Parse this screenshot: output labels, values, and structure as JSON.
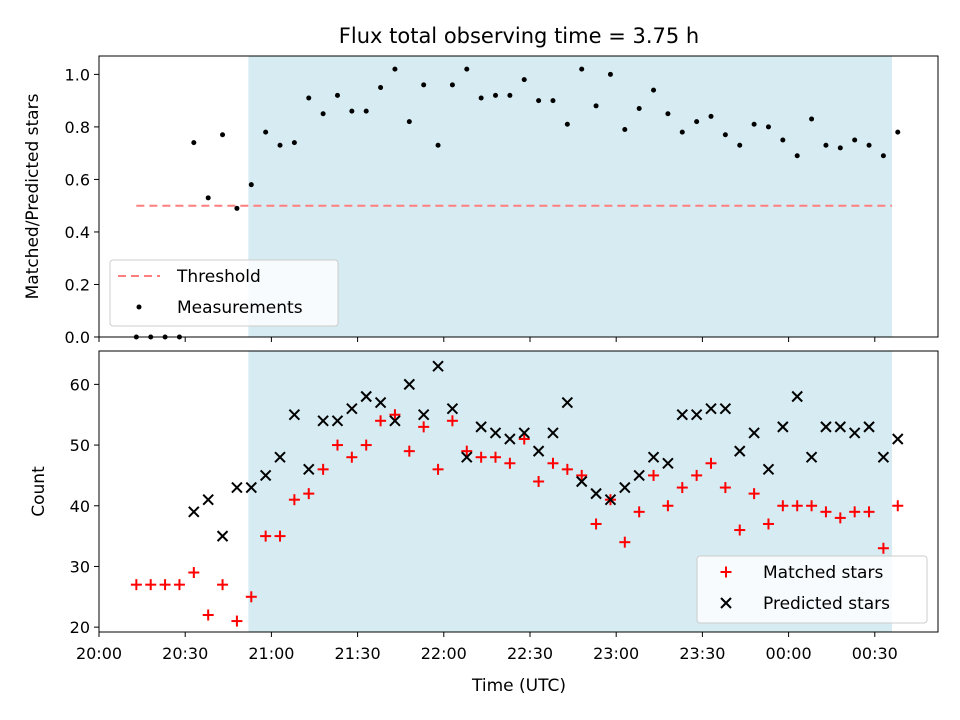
{
  "figure": {
    "title": "Flux total observing time = 3.75 h",
    "xlabel": "Time (UTC)"
  },
  "colors": {
    "shade": "#add8e6",
    "threshold": "#ff7f7f",
    "measurement": "#000000",
    "matched": "#ff0000",
    "predicted": "#000000"
  },
  "chart_data": [
    {
      "type": "scatter",
      "panel": "top",
      "ylabel": "Matched/Predicted stars",
      "xlim": [
        "20:00",
        "00:52"
      ],
      "ylim": [
        0,
        1.07
      ],
      "yticks": [
        0.0,
        0.2,
        0.4,
        0.6,
        0.8,
        1.0
      ],
      "ytick_labels": [
        "0.0",
        "0.2",
        "0.4",
        "0.6",
        "0.8",
        "1.0"
      ],
      "xticks": [
        "20:00",
        "20:30",
        "21:00",
        "21:30",
        "22:00",
        "22:30",
        "23:00",
        "23:30",
        "00:00",
        "00:30"
      ],
      "shaded_interval": {
        "start": "20:52",
        "end": "00:36"
      },
      "threshold": {
        "name": "Threshold",
        "y": 0.5,
        "x_start": "20:13",
        "x_end": "00:36"
      },
      "legend": {
        "position": "lower-left",
        "entries": [
          "Threshold",
          "Measurements"
        ]
      },
      "series": [
        {
          "name": "Measurements",
          "x": [
            "20:13",
            "20:18",
            "20:23",
            "20:28",
            "20:33",
            "20:38",
            "20:43",
            "20:48",
            "20:53",
            "20:58",
            "21:03",
            "21:08",
            "21:13",
            "21:18",
            "21:23",
            "21:28",
            "21:33",
            "21:38",
            "21:43",
            "21:48",
            "21:53",
            "21:58",
            "22:03",
            "22:08",
            "22:13",
            "22:18",
            "22:23",
            "22:28",
            "22:33",
            "22:38",
            "22:43",
            "22:48",
            "22:53",
            "22:58",
            "23:03",
            "23:08",
            "23:13",
            "23:18",
            "23:23",
            "23:28",
            "23:33",
            "23:38",
            "23:43",
            "23:48",
            "23:53",
            "23:58",
            "00:03",
            "00:08",
            "00:13",
            "00:18",
            "00:23",
            "00:28",
            "00:33",
            "00:38"
          ],
          "y": [
            0,
            0,
            0,
            0,
            0.74,
            0.53,
            0.77,
            0.49,
            0.58,
            0.78,
            0.73,
            0.74,
            0.91,
            0.85,
            0.92,
            0.86,
            0.86,
            0.95,
            1.02,
            0.82,
            0.96,
            0.73,
            0.96,
            1.02,
            0.91,
            0.92,
            0.92,
            0.98,
            0.9,
            0.9,
            0.81,
            1.02,
            0.88,
            1.0,
            0.79,
            0.87,
            0.94,
            0.85,
            0.78,
            0.82,
            0.84,
            0.77,
            0.73,
            0.81,
            0.8,
            0.75,
            0.69,
            0.83,
            0.73,
            0.72,
            0.75,
            0.73,
            0.69,
            0.78
          ]
        }
      ]
    },
    {
      "type": "scatter",
      "panel": "bottom",
      "ylabel": "Count",
      "xlim": [
        "20:00",
        "00:52"
      ],
      "ylim": [
        19.2,
        65.5
      ],
      "yticks": [
        20,
        30,
        40,
        50,
        60
      ],
      "ytick_labels": [
        "20",
        "30",
        "40",
        "50",
        "60"
      ],
      "xticks": [
        "20:00",
        "20:30",
        "21:00",
        "21:30",
        "22:00",
        "22:30",
        "23:00",
        "23:30",
        "00:00",
        "00:30"
      ],
      "xtick_labels": [
        "20:00",
        "20:30",
        "21:00",
        "21:30",
        "22:00",
        "22:30",
        "23:00",
        "23:30",
        "00:00",
        "00:30"
      ],
      "shaded_interval": {
        "start": "20:52",
        "end": "00:36"
      },
      "legend": {
        "position": "lower-right",
        "entries": [
          "Matched stars",
          "Predicted stars"
        ]
      },
      "series": [
        {
          "name": "Matched stars",
          "marker": "plus",
          "x": [
            "20:13",
            "20:18",
            "20:23",
            "20:28",
            "20:33",
            "20:38",
            "20:43",
            "20:48",
            "20:53",
            "20:58",
            "21:03",
            "21:08",
            "21:13",
            "21:18",
            "21:23",
            "21:28",
            "21:33",
            "21:38",
            "21:43",
            "21:48",
            "21:53",
            "21:58",
            "22:03",
            "22:08",
            "22:13",
            "22:18",
            "22:23",
            "22:28",
            "22:33",
            "22:38",
            "22:43",
            "22:48",
            "22:53",
            "22:58",
            "23:03",
            "23:08",
            "23:13",
            "23:18",
            "23:23",
            "23:28",
            "23:33",
            "23:38",
            "23:43",
            "23:48",
            "23:53",
            "23:58",
            "00:03",
            "00:08",
            "00:13",
            "00:18",
            "00:23",
            "00:28",
            "00:33",
            "00:38"
          ],
          "y": [
            27,
            27,
            27,
            27,
            29,
            22,
            27,
            21,
            25,
            35,
            35,
            41,
            42,
            46,
            50,
            48,
            50,
            54,
            55,
            49,
            53,
            46,
            54,
            49,
            48,
            48,
            47,
            51,
            44,
            47,
            46,
            45,
            37,
            41,
            34,
            39,
            45,
            40,
            43,
            45,
            47,
            43,
            36,
            42,
            37,
            40,
            40,
            40,
            39,
            38,
            39,
            39,
            33,
            40
          ]
        },
        {
          "name": "Predicted stars",
          "marker": "x",
          "x": [
            "20:33",
            "20:38",
            "20:43",
            "20:48",
            "20:53",
            "20:58",
            "21:03",
            "21:08",
            "21:13",
            "21:18",
            "21:23",
            "21:28",
            "21:33",
            "21:38",
            "21:43",
            "21:48",
            "21:53",
            "21:58",
            "22:03",
            "22:08",
            "22:13",
            "22:18",
            "22:23",
            "22:28",
            "22:33",
            "22:38",
            "22:43",
            "22:48",
            "22:53",
            "22:58",
            "23:03",
            "23:08",
            "23:13",
            "23:18",
            "23:23",
            "23:28",
            "23:33",
            "23:38",
            "23:43",
            "23:48",
            "23:53",
            "23:58",
            "00:03",
            "00:08",
            "00:13",
            "00:18",
            "00:23",
            "00:28",
            "00:33",
            "00:38"
          ],
          "y": [
            39,
            41,
            35,
            43,
            43,
            45,
            48,
            55,
            46,
            54,
            54,
            56,
            58,
            57,
            54,
            60,
            55,
            63,
            56,
            48,
            53,
            52,
            51,
            52,
            49,
            52,
            57,
            44,
            42,
            41,
            43,
            45,
            48,
            47,
            55,
            55,
            56,
            56,
            49,
            52,
            46,
            53,
            58,
            48,
            53,
            53,
            52,
            53,
            48,
            51
          ]
        }
      ]
    }
  ]
}
